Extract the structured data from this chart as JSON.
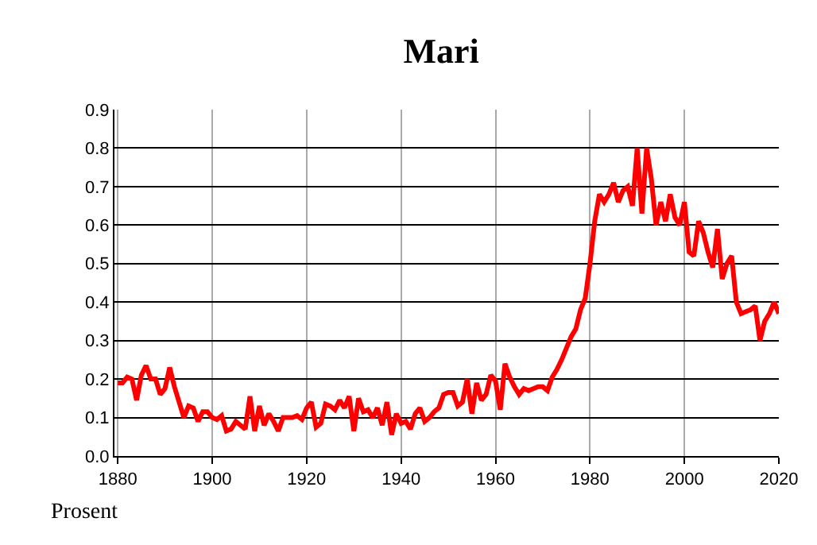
{
  "chart_data": {
    "type": "line",
    "title": "Mari",
    "ylabel": "Prosent",
    "x": [
      1880,
      1881,
      1882,
      1883,
      1884,
      1885,
      1886,
      1887,
      1888,
      1889,
      1890,
      1891,
      1892,
      1893,
      1894,
      1895,
      1896,
      1897,
      1898,
      1899,
      1900,
      1901,
      1902,
      1903,
      1904,
      1905,
      1906,
      1907,
      1908,
      1909,
      1910,
      1911,
      1912,
      1913,
      1914,
      1915,
      1916,
      1917,
      1918,
      1919,
      1920,
      1921,
      1922,
      1923,
      1924,
      1925,
      1926,
      1927,
      1928,
      1929,
      1930,
      1931,
      1932,
      1933,
      1934,
      1935,
      1936,
      1937,
      1938,
      1939,
      1940,
      1941,
      1942,
      1943,
      1944,
      1945,
      1946,
      1947,
      1948,
      1949,
      1950,
      1951,
      1952,
      1953,
      1954,
      1955,
      1956,
      1957,
      1958,
      1959,
      1960,
      1961,
      1962,
      1963,
      1964,
      1965,
      1966,
      1967,
      1968,
      1969,
      1970,
      1971,
      1972,
      1973,
      1974,
      1975,
      1976,
      1977,
      1978,
      1979,
      1980,
      1981,
      1982,
      1983,
      1984,
      1985,
      1986,
      1987,
      1988,
      1989,
      1990,
      1991,
      1992,
      1993,
      1994,
      1995,
      1996,
      1997,
      1998,
      1999,
      2000,
      2001,
      2002,
      2003,
      2004,
      2005,
      2006,
      2007,
      2008,
      2009,
      2010,
      2011,
      2012,
      2013,
      2014,
      2015,
      2016,
      2017,
      2018,
      2019,
      2020
    ],
    "series": [
      {
        "color": "#ff0000",
        "values": [
          0.19,
          0.19,
          0.205,
          0.2,
          0.145,
          0.21,
          0.235,
          0.2,
          0.2,
          0.16,
          0.175,
          0.23,
          0.18,
          0.14,
          0.1,
          0.13,
          0.125,
          0.09,
          0.115,
          0.115,
          0.1,
          0.095,
          0.105,
          0.065,
          0.07,
          0.09,
          0.08,
          0.07,
          0.155,
          0.065,
          0.13,
          0.08,
          0.11,
          0.09,
          0.065,
          0.1,
          0.1,
          0.1,
          0.105,
          0.095,
          0.125,
          0.14,
          0.075,
          0.085,
          0.135,
          0.13,
          0.12,
          0.145,
          0.125,
          0.155,
          0.065,
          0.15,
          0.115,
          0.12,
          0.1,
          0.125,
          0.08,
          0.14,
          0.055,
          0.11,
          0.085,
          0.09,
          0.07,
          0.11,
          0.125,
          0.09,
          0.1,
          0.115,
          0.125,
          0.16,
          0.165,
          0.165,
          0.13,
          0.14,
          0.2,
          0.11,
          0.19,
          0.145,
          0.16,
          0.21,
          0.195,
          0.12,
          0.24,
          0.205,
          0.18,
          0.16,
          0.175,
          0.17,
          0.175,
          0.18,
          0.18,
          0.17,
          0.205,
          0.225,
          0.25,
          0.28,
          0.31,
          0.33,
          0.38,
          0.41,
          0.5,
          0.61,
          0.68,
          0.66,
          0.68,
          0.71,
          0.66,
          0.69,
          0.7,
          0.65,
          0.8,
          0.63,
          0.8,
          0.72,
          0.6,
          0.66,
          0.61,
          0.68,
          0.62,
          0.6,
          0.66,
          0.53,
          0.52,
          0.61,
          0.58,
          0.53,
          0.49,
          0.59,
          0.46,
          0.5,
          0.52,
          0.4,
          0.37,
          0.375,
          0.38,
          0.39,
          0.3,
          0.35,
          0.37,
          0.4,
          0.37
        ]
      }
    ],
    "xlim": [
      1879.3,
      2020
    ],
    "xticks": [
      1880,
      1900,
      1920,
      1940,
      1960,
      1980,
      2000,
      2020
    ],
    "ylim": [
      0,
      0.9
    ],
    "yticks": [
      {
        "value": 0,
        "label": "0.0"
      },
      {
        "value": 0.1,
        "label": "0.1"
      },
      {
        "value": 0.2,
        "label": "0.2"
      },
      {
        "value": 0.3,
        "label": "0.3"
      },
      {
        "value": 0.4,
        "label": "0.4"
      },
      {
        "value": 0.5,
        "label": "0.5"
      },
      {
        "value": 0.6,
        "label": "0.6"
      },
      {
        "value": 0.7,
        "label": "0.7"
      },
      {
        "value": 0.8,
        "label": "0.8"
      },
      {
        "value": 0.9,
        "label": "0.9"
      }
    ],
    "grid": true,
    "legend": false
  }
}
